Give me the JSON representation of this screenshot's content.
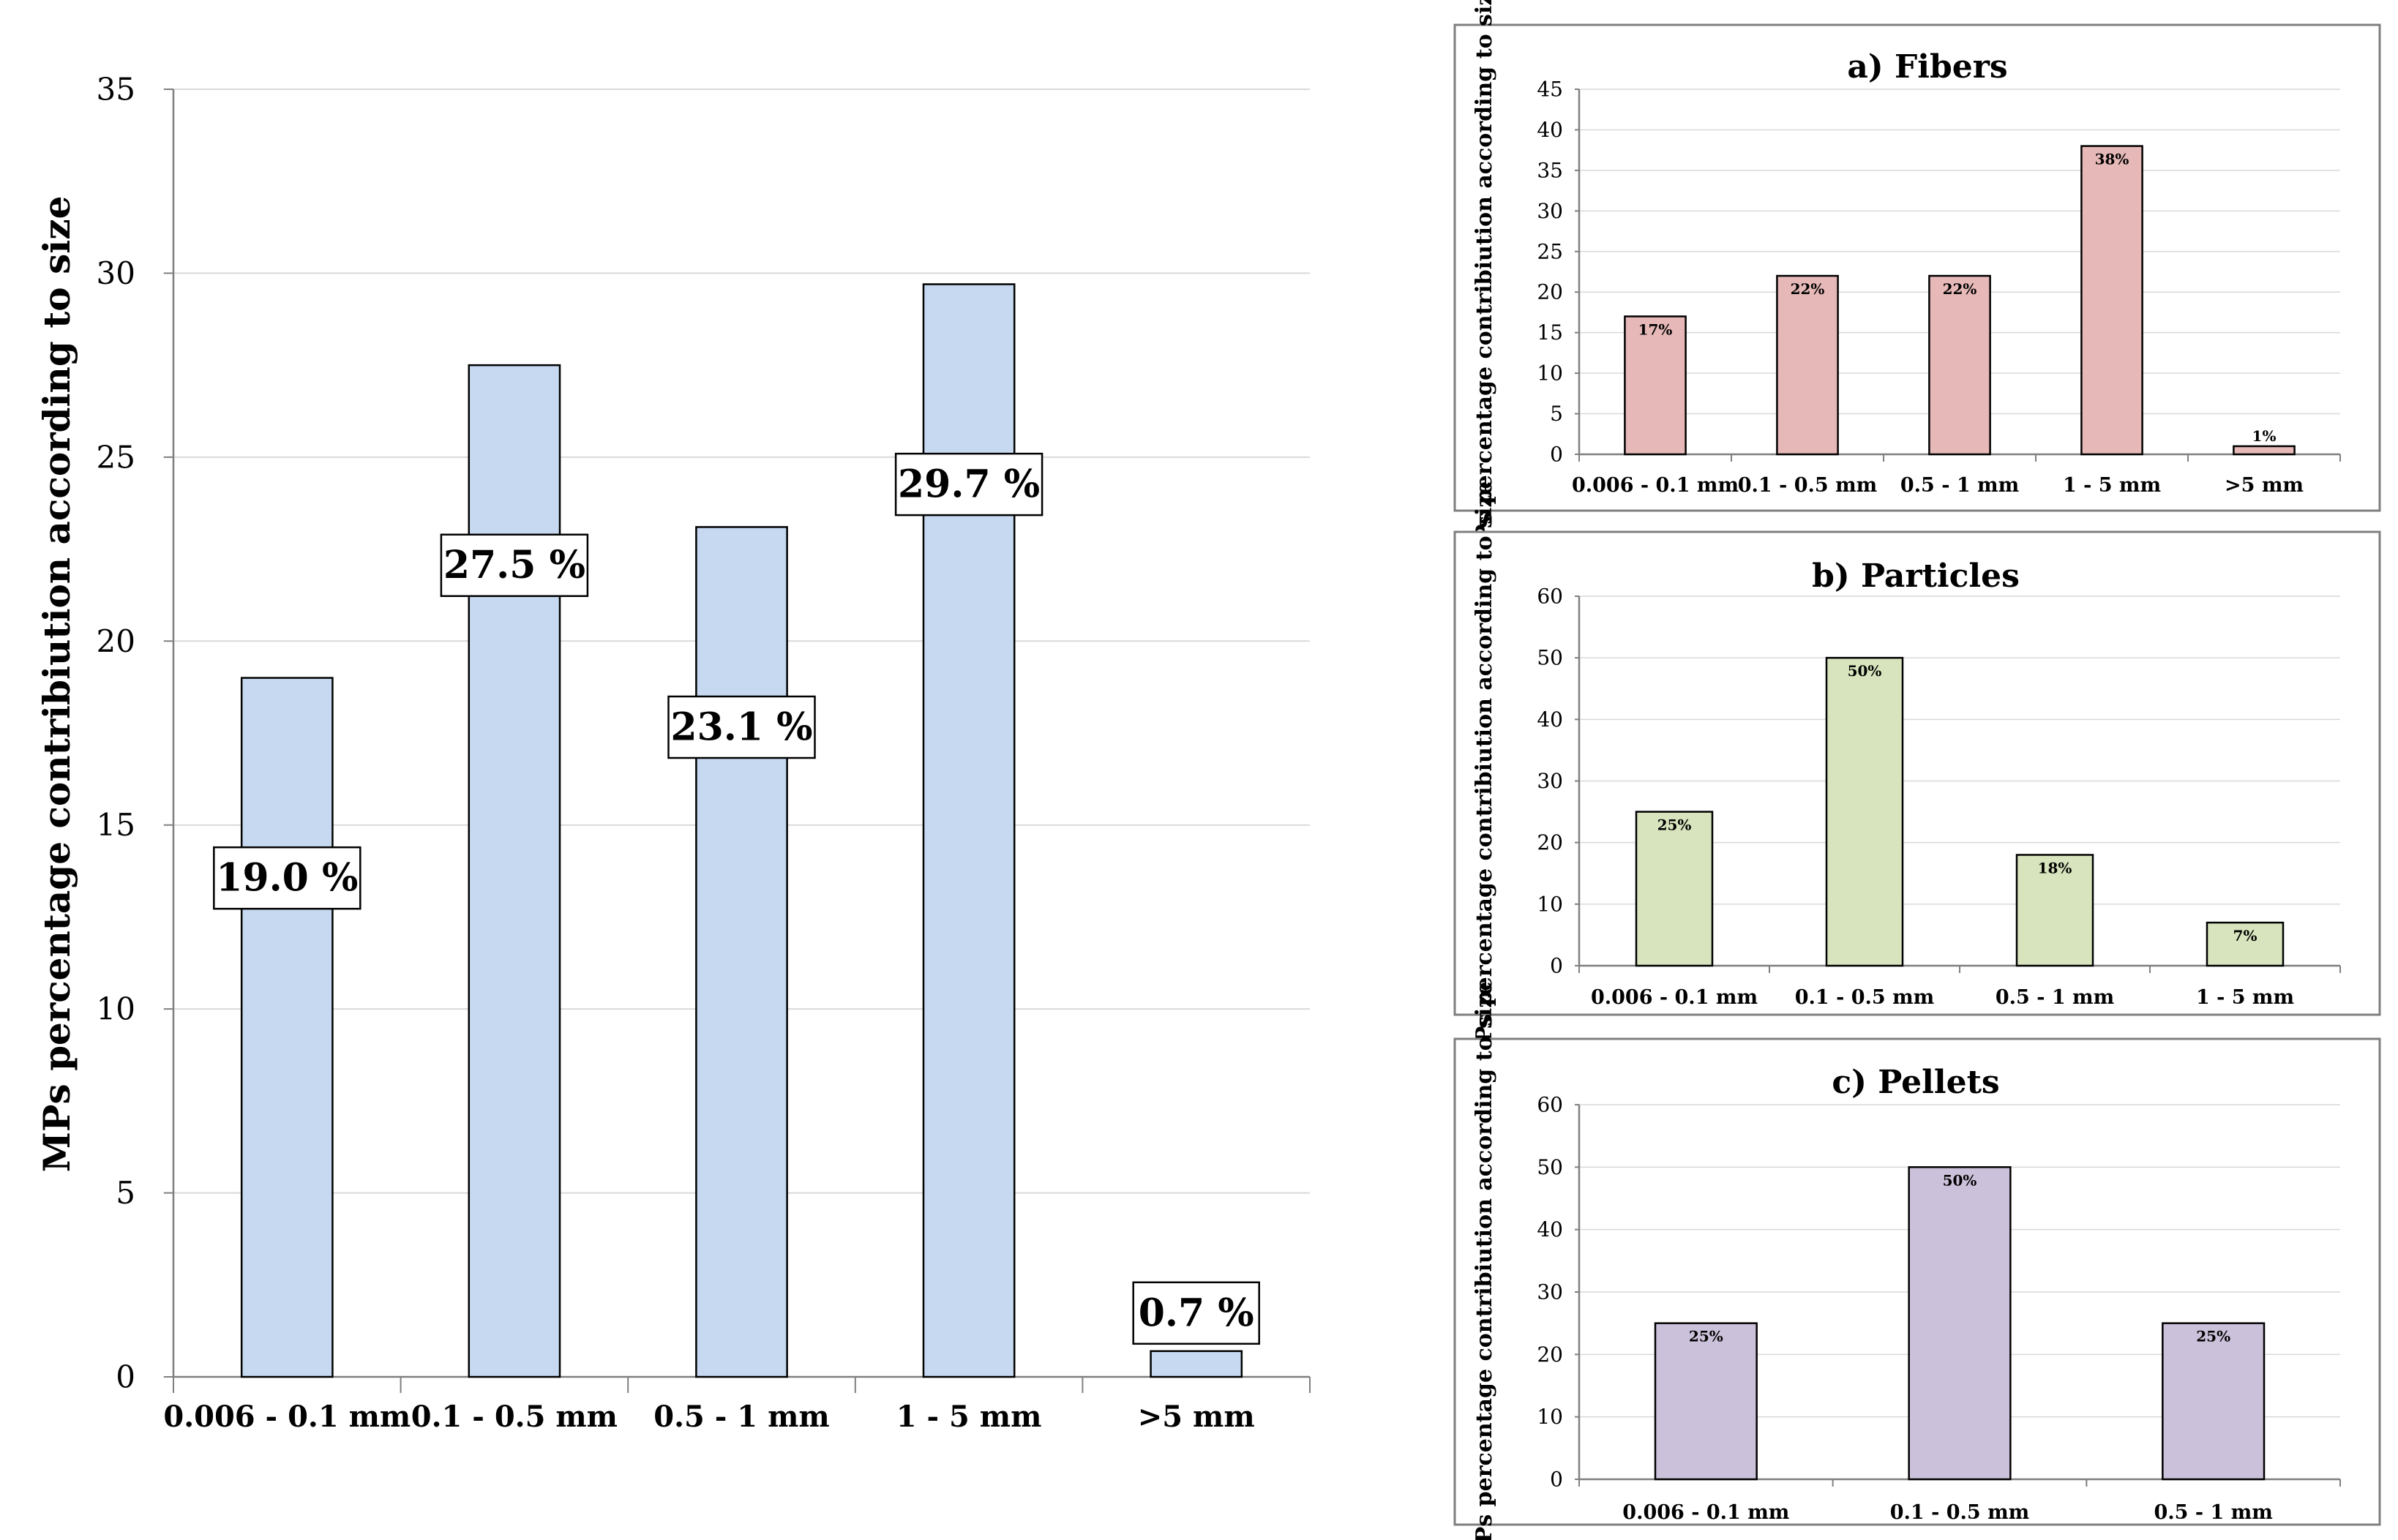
{
  "chart_data": [
    {
      "id": "main",
      "type": "bar",
      "title": "",
      "xlabel": "",
      "ylabel": "MPs percentage contribiution according to size",
      "categories": [
        "0.006 - 0.1 mm",
        "0.1 - 0.5 mm",
        "0.5 - 1 mm",
        "1 - 5 mm",
        ">5 mm"
      ],
      "values": [
        19.0,
        27.5,
        23.1,
        29.7,
        0.7
      ],
      "data_labels": [
        "19.0 %",
        "27.5 %",
        "23.1 %",
        "29.7 %",
        "0.7 %"
      ],
      "ylim": [
        0,
        35
      ],
      "yticks": [
        0,
        5,
        10,
        15,
        20,
        25,
        30,
        35
      ],
      "bar_color": "#c6d9f1",
      "grid": true
    },
    {
      "id": "fibers",
      "type": "bar",
      "title": "a) Fibers",
      "xlabel": "",
      "ylabel": "MPs percentage contribiution according to size",
      "categories": [
        "0.006 - 0.1 mm",
        "0.1 - 0.5 mm",
        "0.5 - 1 mm",
        "1 - 5 mm",
        ">5 mm"
      ],
      "values": [
        17,
        22,
        22,
        38,
        1
      ],
      "data_labels": [
        "17%",
        "22%",
        "22%",
        "38%",
        "1%"
      ],
      "ylim": [
        0,
        45
      ],
      "yticks": [
        0,
        5,
        10,
        15,
        20,
        25,
        30,
        35,
        40,
        45
      ],
      "bar_color": "#e6b9b8",
      "grid": true
    },
    {
      "id": "particles",
      "type": "bar",
      "title": "b) Particles",
      "xlabel": "",
      "ylabel": "MPs percentage contribiution according to size",
      "categories": [
        "0.006 - 0.1 mm",
        "0.1 - 0.5 mm",
        "0.5 - 1 mm",
        "1 - 5 mm"
      ],
      "values": [
        25,
        50,
        18,
        7
      ],
      "data_labels": [
        "25%",
        "50%",
        "18%",
        "7%"
      ],
      "ylim": [
        0,
        60
      ],
      "yticks": [
        0,
        10,
        20,
        30,
        40,
        50,
        60
      ],
      "bar_color": "#d7e4bd",
      "grid": true
    },
    {
      "id": "pellets",
      "type": "bar",
      "title": "c) Pellets",
      "xlabel": "",
      "ylabel": "MPs percentage contribiution according to size",
      "categories": [
        "0.006 - 0.1 mm",
        "0.1 - 0.5 mm",
        "0.5 - 1 mm"
      ],
      "values": [
        25,
        50,
        25
      ],
      "data_labels": [
        "25%",
        "50%",
        "25%"
      ],
      "ylim": [
        0,
        60
      ],
      "yticks": [
        0,
        10,
        20,
        30,
        40,
        50,
        60
      ],
      "bar_color": "#ccc1da",
      "grid": true
    }
  ]
}
